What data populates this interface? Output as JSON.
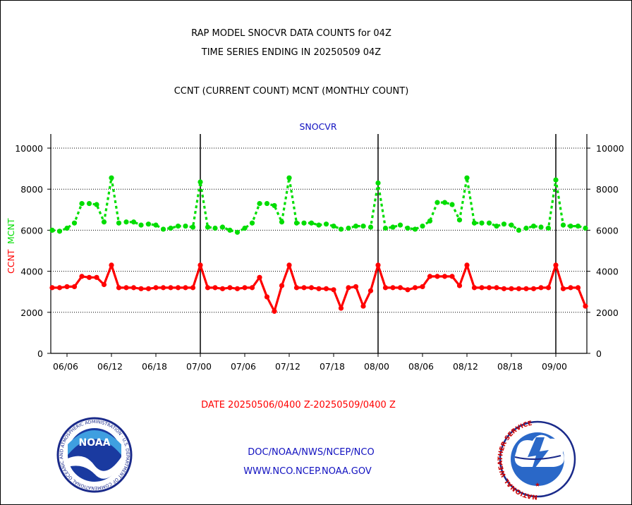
{
  "header": {
    "line1": "RAP MODEL SNOCVR DATA COUNTS for 04Z",
    "line2": "TIME SERIES ENDING IN 20250509 04Z",
    "line3": "CCNT (CURRENT COUNT) MCNT (MONTHLY COUNT)"
  },
  "footer": {
    "date_range": "DATE 20250506/0400 Z-20250509/0400 Z",
    "org_path": "DOC/NOAA/NWS/NCEP/NCO",
    "website": "WWW.NCO.NCEP.NOAA.GOV"
  },
  "logos": {
    "noaa_text": "NOAA",
    "noaa_ring": "NATIONAL OCEANIC AND ATMOSPHERIC ADMINISTRATION · U.S. DEPARTMENT OF COMMERCE",
    "nws_ring": "NATIONAL WEATHER SERVICE"
  },
  "colors": {
    "ccnt": "#ff0000",
    "mcnt": "#00dd00",
    "title": "#1010c0"
  },
  "chart_data": {
    "type": "line",
    "title": "SNOCVR",
    "ylabel_left_ccnt": "CCNT",
    "ylabel_left_mcnt": "MCNT",
    "ylim": [
      0,
      10000
    ],
    "yticks": [
      "0",
      "2000",
      "4000",
      "6000",
      "8000",
      "10000"
    ],
    "x_ticks": [
      {
        "label": "06/06",
        "index": 2
      },
      {
        "label": "06/12",
        "index": 8
      },
      {
        "label": "06/18",
        "index": 14
      },
      {
        "label": "07/00",
        "index": 20
      },
      {
        "label": "07/06",
        "index": 26
      },
      {
        "label": "07/12",
        "index": 32
      },
      {
        "label": "07/18",
        "index": 38
      },
      {
        "label": "08/00",
        "index": 44
      },
      {
        "label": "08/06",
        "index": 50
      },
      {
        "label": "08/12",
        "index": 56
      },
      {
        "label": "08/18",
        "index": 62
      },
      {
        "label": "09/00",
        "index": 68
      }
    ],
    "day_boundaries": [
      20,
      44,
      68
    ],
    "grid": true,
    "series": [
      {
        "name": "CCNT",
        "style": "solid",
        "values": [
          3200,
          3200,
          3250,
          3250,
          3750,
          3700,
          3700,
          3350,
          4300,
          3200,
          3200,
          3200,
          3150,
          3150,
          3200,
          3200,
          3200,
          3200,
          3200,
          3200,
          4300,
          3200,
          3200,
          3150,
          3200,
          3150,
          3200,
          3200,
          3700,
          2750,
          2050,
          3300,
          4300,
          3200,
          3200,
          3200,
          3150,
          3150,
          3100,
          2200,
          3200,
          3250,
          2300,
          3050,
          4300,
          3200,
          3200,
          3200,
          3100,
          3200,
          3250,
          3750,
          3750,
          3750,
          3750,
          3300,
          4300,
          3200,
          3200,
          3200,
          3200,
          3150,
          3150,
          3150,
          3150,
          3150,
          3200,
          3200,
          4300,
          3150,
          3200,
          3200,
          2300
        ]
      },
      {
        "name": "MCNT",
        "style": "dashed",
        "values": [
          6000,
          5950,
          6100,
          6350,
          7300,
          7300,
          7250,
          6400,
          8550,
          6350,
          6400,
          6400,
          6250,
          6300,
          6250,
          6050,
          6100,
          6200,
          6200,
          6150,
          8350,
          6150,
          6100,
          6150,
          6000,
          5900,
          6100,
          6350,
          7300,
          7300,
          7200,
          6400,
          8550,
          6350,
          6350,
          6350,
          6250,
          6300,
          6200,
          6050,
          6100,
          6200,
          6200,
          6150,
          8300,
          6100,
          6150,
          6250,
          6100,
          6050,
          6200,
          6450,
          7350,
          7350,
          7250,
          6500,
          8550,
          6350,
          6350,
          6350,
          6200,
          6300,
          6250,
          6000,
          6100,
          6200,
          6150,
          6100,
          8450,
          6250,
          6200,
          6200,
          6100
        ]
      }
    ]
  }
}
